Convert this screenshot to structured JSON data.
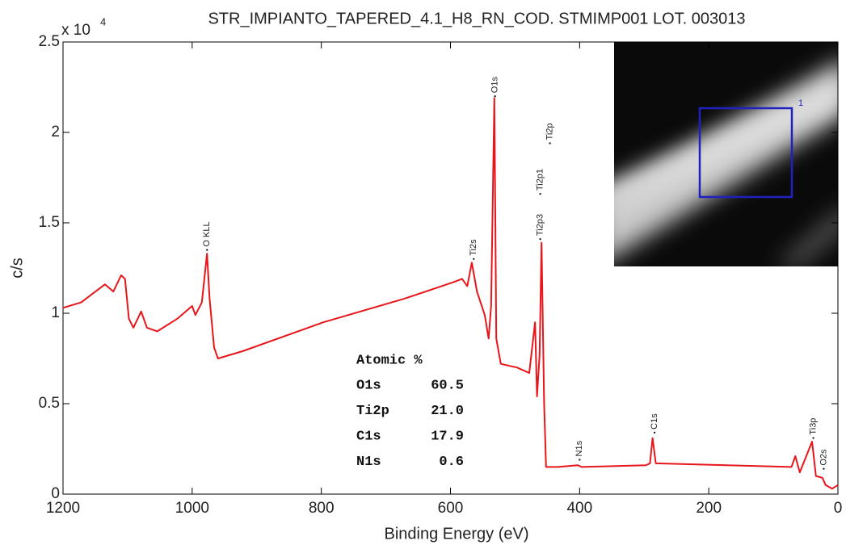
{
  "chart_data": {
    "type": "line",
    "title": "STR_IMPIANTO_TAPERED_4.1_H8_RN_COD. STMIMP001 LOT. 003013",
    "x_label": "Binding Energy (eV)",
    "y_label": "c/s",
    "multiplier": "x 10",
    "multiplier_exponent": "4",
    "color": "#e8161b",
    "x": [
      1200,
      1172,
      1135,
      1122,
      1110,
      1104,
      1098,
      1091,
      1079,
      1070,
      1054,
      1023,
      1000,
      995,
      985,
      977,
      973,
      966,
      960,
      922,
      797,
      672,
      597,
      582,
      574,
      567,
      559,
      547,
      541,
      537,
      532,
      529,
      522,
      497,
      478,
      469,
      466,
      462,
      459,
      455,
      452,
      434,
      403,
      397,
      297,
      291,
      287,
      282,
      172,
      72,
      66,
      59,
      40,
      34,
      24,
      19,
      9,
      0
    ],
    "values": [
      1.03,
      1.06,
      1.16,
      1.12,
      1.21,
      1.19,
      0.97,
      0.92,
      1.01,
      0.92,
      0.9,
      0.97,
      1.04,
      0.99,
      1.06,
      1.33,
      1.08,
      0.81,
      0.75,
      0.79,
      0.95,
      1.08,
      1.17,
      1.19,
      1.15,
      1.28,
      1.12,
      0.99,
      0.86,
      1.04,
      2.19,
      0.86,
      0.72,
      0.7,
      0.67,
      0.95,
      0.54,
      0.77,
      1.39,
      0.5,
      0.15,
      0.15,
      0.16,
      0.15,
      0.16,
      0.17,
      0.31,
      0.17,
      0.16,
      0.15,
      0.21,
      0.12,
      0.29,
      0.1,
      0.09,
      0.05,
      0.03,
      0.05
    ],
    "xlim": [
      1200,
      0
    ],
    "ylim": [
      0,
      2.5
    ],
    "xticks": [
      1200,
      1000,
      800,
      600,
      400,
      200,
      0
    ],
    "yticks": [
      0,
      0.5,
      1,
      1.5,
      2,
      2.5
    ],
    "grid": false,
    "annotations": [
      {
        "text": "O KLL",
        "x": 977,
        "y": 1.35
      },
      {
        "text": "Ti2s",
        "x": 564,
        "y": 1.3
      },
      {
        "text": "O1s",
        "x": 531,
        "y": 2.2
      },
      {
        "text": "Ti2p3",
        "x": 461,
        "y": 1.41
      },
      {
        "text": "Ti2p1",
        "x": 461,
        "y": 1.66
      },
      {
        "text": "Ti2p",
        "x": 446,
        "y": 1.94
      },
      {
        "text": "N1s",
        "x": 400,
        "y": 0.19
      },
      {
        "text": "C1s",
        "x": 284,
        "y": 0.34
      },
      {
        "text": "Ti3p",
        "x": 38,
        "y": 0.31
      },
      {
        "text": "O2s",
        "x": 22,
        "y": 0.14
      }
    ],
    "table": {
      "header": "Atomic %",
      "rows": [
        [
          "O1s",
          "60.5"
        ],
        [
          "Ti2p",
          "21.0"
        ],
        [
          "C1s",
          "17.9"
        ],
        [
          "N1s",
          "0.6"
        ]
      ]
    },
    "inset_label": "1"
  }
}
